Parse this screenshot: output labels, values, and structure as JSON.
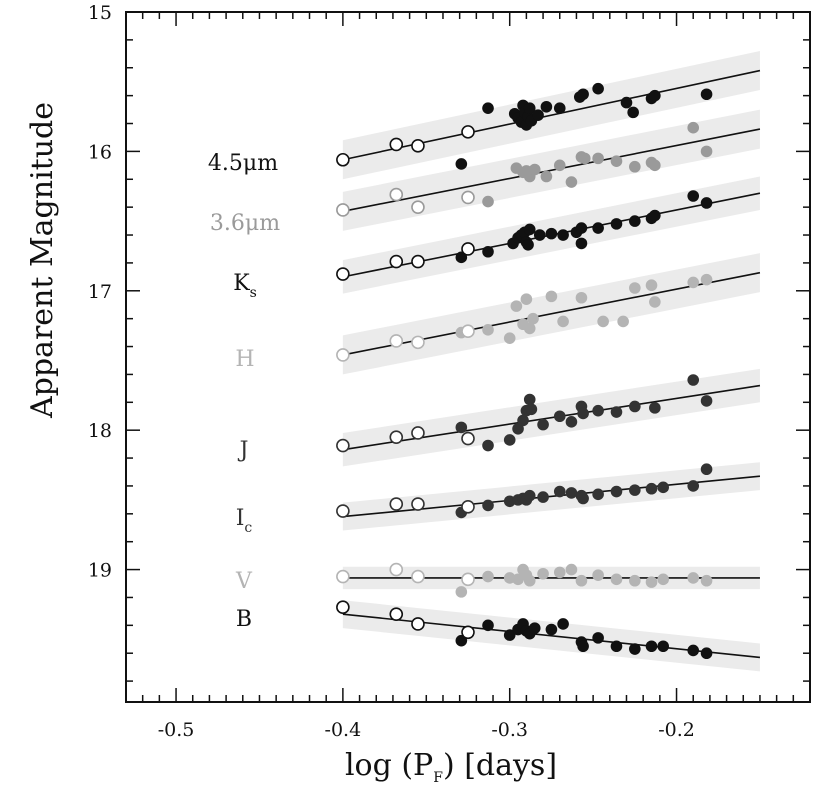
{
  "chart_data": {
    "type": "scatter",
    "title": "",
    "xlabel_parts": {
      "pre": "log (P",
      "sub": "F",
      "post": ") [days]"
    },
    "ylabel": "Apparent Magnitude",
    "xlim": [
      -0.53,
      -0.12
    ],
    "ylim": [
      15.0,
      19.95
    ],
    "y_inverted": true,
    "x_ticks": [
      -0.5,
      -0.4,
      -0.3,
      -0.2
    ],
    "x_tick_labels": [
      "-0.5",
      "-0.4",
      "-0.3",
      "-0.2"
    ],
    "y_ticks": [
      15,
      16,
      17,
      18,
      19
    ],
    "y_tick_labels": [
      "15",
      "16",
      "17",
      "18",
      "19"
    ],
    "fit_range": [
      -0.4,
      -0.15
    ],
    "series": [
      {
        "name": "4.5μm",
        "label_main": "4.5μm",
        "label_sub": "",
        "color": "#111111",
        "fit": [
          16.06,
          15.42
        ],
        "band_halfwidth": 0.14,
        "open": [
          [
            -0.4,
            16.06
          ],
          [
            -0.368,
            15.95
          ],
          [
            -0.355,
            15.96
          ],
          [
            -0.325,
            15.86
          ]
        ],
        "filled": [
          [
            -0.329,
            16.09
          ],
          [
            -0.313,
            15.69
          ],
          [
            -0.297,
            15.73
          ],
          [
            -0.295,
            15.76
          ],
          [
            -0.293,
            15.79
          ],
          [
            -0.292,
            15.67
          ],
          [
            -0.291,
            15.72
          ],
          [
            -0.29,
            15.81
          ],
          [
            -0.289,
            15.75
          ],
          [
            -0.288,
            15.69
          ],
          [
            -0.287,
            15.78
          ],
          [
            -0.283,
            15.74
          ],
          [
            -0.278,
            15.68
          ],
          [
            -0.27,
            15.69
          ],
          [
            -0.258,
            15.61
          ],
          [
            -0.256,
            15.59
          ],
          [
            -0.247,
            15.55
          ],
          [
            -0.23,
            15.65
          ],
          [
            -0.226,
            15.72
          ],
          [
            -0.215,
            15.62
          ],
          [
            -0.213,
            15.6
          ],
          [
            -0.182,
            15.59
          ]
        ]
      },
      {
        "name": "3.6μm",
        "label_main": "3.6μm",
        "label_sub": "",
        "color": "#9a9a9a",
        "fit": [
          16.43,
          15.84
        ],
        "band_halfwidth": 0.14,
        "open": [
          [
            -0.4,
            16.42
          ],
          [
            -0.368,
            16.31
          ],
          [
            -0.355,
            16.4
          ],
          [
            -0.325,
            16.33
          ]
        ],
        "filled": [
          [
            -0.313,
            16.36
          ],
          [
            -0.296,
            16.12
          ],
          [
            -0.292,
            16.15
          ],
          [
            -0.29,
            16.14
          ],
          [
            -0.288,
            16.18
          ],
          [
            -0.285,
            16.13
          ],
          [
            -0.278,
            16.18
          ],
          [
            -0.27,
            16.1
          ],
          [
            -0.263,
            16.22
          ],
          [
            -0.257,
            16.04
          ],
          [
            -0.255,
            16.05
          ],
          [
            -0.247,
            16.05
          ],
          [
            -0.236,
            16.07
          ],
          [
            -0.225,
            16.11
          ],
          [
            -0.215,
            16.08
          ],
          [
            -0.213,
            16.1
          ],
          [
            -0.19,
            15.83
          ],
          [
            -0.182,
            16.0
          ]
        ]
      },
      {
        "name": "Ks",
        "label_main": "K",
        "label_sub": "s",
        "color": "#111111",
        "fit": [
          16.9,
          16.3
        ],
        "band_halfwidth": 0.12,
        "open": [
          [
            -0.4,
            16.88
          ],
          [
            -0.368,
            16.79
          ],
          [
            -0.355,
            16.79
          ],
          [
            -0.325,
            16.7
          ]
        ],
        "filled": [
          [
            -0.329,
            16.76
          ],
          [
            -0.313,
            16.72
          ],
          [
            -0.298,
            16.66
          ],
          [
            -0.295,
            16.62
          ],
          [
            -0.293,
            16.6
          ],
          [
            -0.291,
            16.58
          ],
          [
            -0.29,
            16.65
          ],
          [
            -0.289,
            16.67
          ],
          [
            -0.288,
            16.56
          ],
          [
            -0.282,
            16.6
          ],
          [
            -0.275,
            16.59
          ],
          [
            -0.268,
            16.6
          ],
          [
            -0.26,
            16.58
          ],
          [
            -0.257,
            16.55
          ],
          [
            -0.257,
            16.66
          ],
          [
            -0.247,
            16.55
          ],
          [
            -0.236,
            16.52
          ],
          [
            -0.225,
            16.5
          ],
          [
            -0.215,
            16.48
          ],
          [
            -0.213,
            16.46
          ],
          [
            -0.19,
            16.32
          ],
          [
            -0.182,
            16.37
          ]
        ]
      },
      {
        "name": "H",
        "label_main": "H",
        "label_sub": "",
        "color": "#b4b4b4",
        "fit": [
          17.46,
          16.87
        ],
        "band_halfwidth": 0.14,
        "open": [
          [
            -0.4,
            17.46
          ],
          [
            -0.368,
            17.36
          ],
          [
            -0.355,
            17.37
          ],
          [
            -0.325,
            17.29
          ]
        ],
        "filled": [
          [
            -0.329,
            17.3
          ],
          [
            -0.313,
            17.28
          ],
          [
            -0.3,
            17.34
          ],
          [
            -0.296,
            17.11
          ],
          [
            -0.292,
            17.24
          ],
          [
            -0.29,
            17.06
          ],
          [
            -0.288,
            17.27
          ],
          [
            -0.286,
            17.2
          ],
          [
            -0.275,
            17.04
          ],
          [
            -0.268,
            17.22
          ],
          [
            -0.257,
            17.05
          ],
          [
            -0.244,
            17.22
          ],
          [
            -0.232,
            17.22
          ],
          [
            -0.225,
            16.98
          ],
          [
            -0.215,
            16.96
          ],
          [
            -0.213,
            17.08
          ],
          [
            -0.19,
            16.94
          ],
          [
            -0.182,
            16.92
          ]
        ]
      },
      {
        "name": "J",
        "label_main": "J",
        "label_sub": "",
        "color": "#333333",
        "fit": [
          18.14,
          17.68
        ],
        "band_halfwidth": 0.12,
        "open": [
          [
            -0.4,
            18.11
          ],
          [
            -0.368,
            18.05
          ],
          [
            -0.355,
            18.02
          ],
          [
            -0.325,
            18.06
          ]
        ],
        "filled": [
          [
            -0.329,
            17.98
          ],
          [
            -0.313,
            18.11
          ],
          [
            -0.3,
            18.07
          ],
          [
            -0.295,
            17.99
          ],
          [
            -0.292,
            17.93
          ],
          [
            -0.29,
            17.86
          ],
          [
            -0.288,
            17.78
          ],
          [
            -0.287,
            17.85
          ],
          [
            -0.28,
            17.96
          ],
          [
            -0.27,
            17.9
          ],
          [
            -0.263,
            17.94
          ],
          [
            -0.257,
            17.83
          ],
          [
            -0.256,
            17.88
          ],
          [
            -0.247,
            17.86
          ],
          [
            -0.236,
            17.87
          ],
          [
            -0.225,
            17.83
          ],
          [
            -0.213,
            17.84
          ],
          [
            -0.19,
            17.64
          ],
          [
            -0.182,
            17.79
          ]
        ]
      },
      {
        "name": "Ic",
        "label_main": "I",
        "label_sub": "c",
        "color": "#333333",
        "fit": [
          18.62,
          18.33
        ],
        "band_halfwidth": 0.1,
        "open": [
          [
            -0.4,
            18.58
          ],
          [
            -0.368,
            18.53
          ],
          [
            -0.355,
            18.53
          ],
          [
            -0.325,
            18.55
          ]
        ],
        "filled": [
          [
            -0.329,
            18.59
          ],
          [
            -0.313,
            18.54
          ],
          [
            -0.3,
            18.51
          ],
          [
            -0.295,
            18.5
          ],
          [
            -0.292,
            18.49
          ],
          [
            -0.29,
            18.5
          ],
          [
            -0.288,
            18.47
          ],
          [
            -0.28,
            18.48
          ],
          [
            -0.27,
            18.44
          ],
          [
            -0.263,
            18.45
          ],
          [
            -0.257,
            18.47
          ],
          [
            -0.256,
            18.49
          ],
          [
            -0.247,
            18.46
          ],
          [
            -0.236,
            18.44
          ],
          [
            -0.225,
            18.43
          ],
          [
            -0.215,
            18.42
          ],
          [
            -0.208,
            18.41
          ],
          [
            -0.19,
            18.4
          ],
          [
            -0.182,
            18.28
          ]
        ]
      },
      {
        "name": "V",
        "label_main": "V",
        "label_sub": "",
        "color": "#b4b4b4",
        "fit": [
          19.06,
          19.06
        ],
        "band_halfwidth": 0.08,
        "open": [
          [
            -0.4,
            19.05
          ],
          [
            -0.368,
            19.0
          ],
          [
            -0.355,
            19.05
          ],
          [
            -0.325,
            19.07
          ]
        ],
        "filled": [
          [
            -0.329,
            19.16
          ],
          [
            -0.313,
            19.05
          ],
          [
            -0.3,
            19.06
          ],
          [
            -0.295,
            19.07
          ],
          [
            -0.292,
            19.0
          ],
          [
            -0.29,
            19.04
          ],
          [
            -0.288,
            19.08
          ],
          [
            -0.28,
            19.03
          ],
          [
            -0.27,
            19.02
          ],
          [
            -0.263,
            19.0
          ],
          [
            -0.257,
            19.08
          ],
          [
            -0.247,
            19.04
          ],
          [
            -0.236,
            19.07
          ],
          [
            -0.225,
            19.08
          ],
          [
            -0.215,
            19.09
          ],
          [
            -0.208,
            19.07
          ],
          [
            -0.19,
            19.06
          ],
          [
            -0.182,
            19.08
          ]
        ]
      },
      {
        "name": "B",
        "label_main": "B",
        "label_sub": "",
        "color": "#111111",
        "fit": [
          19.32,
          19.63
        ],
        "band_halfwidth": 0.1,
        "open": [
          [
            -0.4,
            19.27
          ],
          [
            -0.368,
            19.32
          ],
          [
            -0.355,
            19.39
          ],
          [
            -0.325,
            19.45
          ]
        ],
        "filled": [
          [
            -0.329,
            19.51
          ],
          [
            -0.313,
            19.4
          ],
          [
            -0.3,
            19.47
          ],
          [
            -0.295,
            19.43
          ],
          [
            -0.292,
            19.39
          ],
          [
            -0.29,
            19.44
          ],
          [
            -0.288,
            19.46
          ],
          [
            -0.285,
            19.42
          ],
          [
            -0.275,
            19.43
          ],
          [
            -0.268,
            19.39
          ],
          [
            -0.257,
            19.52
          ],
          [
            -0.256,
            19.55
          ],
          [
            -0.247,
            19.49
          ],
          [
            -0.236,
            19.55
          ],
          [
            -0.225,
            19.57
          ],
          [
            -0.215,
            19.55
          ],
          [
            -0.208,
            19.55
          ],
          [
            -0.19,
            19.58
          ],
          [
            -0.182,
            19.6
          ]
        ]
      }
    ]
  }
}
